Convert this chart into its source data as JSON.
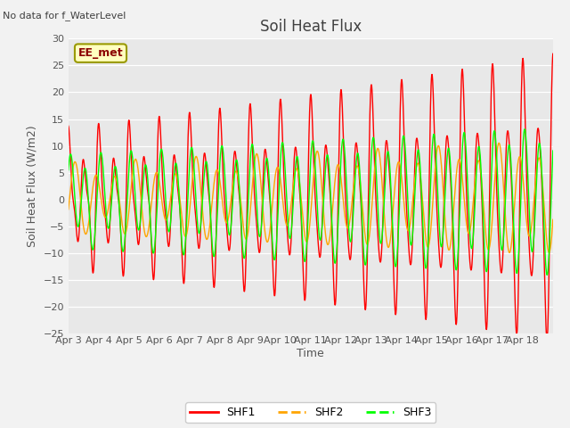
{
  "title": "Soil Heat Flux",
  "ylabel": "Soil Heat Flux (W/m2)",
  "xlabel": "Time",
  "no_data_text": "No data for f_WaterLevel",
  "ee_met_label": "EE_met",
  "ylim": [
    -25,
    30
  ],
  "yticks": [
    -25,
    -20,
    -15,
    -10,
    -5,
    0,
    5,
    10,
    15,
    20,
    25,
    30
  ],
  "xtick_labels": [
    "Apr 3",
    "Apr 4",
    "Apr 5",
    "Apr 6",
    "Apr 7",
    "Apr 8",
    "Apr 9",
    "Apr 10",
    "Apr 11",
    "Apr 12",
    "Apr 13",
    "Apr 14",
    "Apr 15",
    "Apr 16",
    "Apr 17",
    "Apr 18"
  ],
  "colors": {
    "SHF1": "#FF0000",
    "SHF2": "#FFA500",
    "SHF3": "#00FF00"
  },
  "fig_facecolor": "#F2F2F2",
  "ax_facecolor": "#E8E8E8",
  "grid_color": "#FFFFFF",
  "title_color": "#404040",
  "text_color": "#555555"
}
